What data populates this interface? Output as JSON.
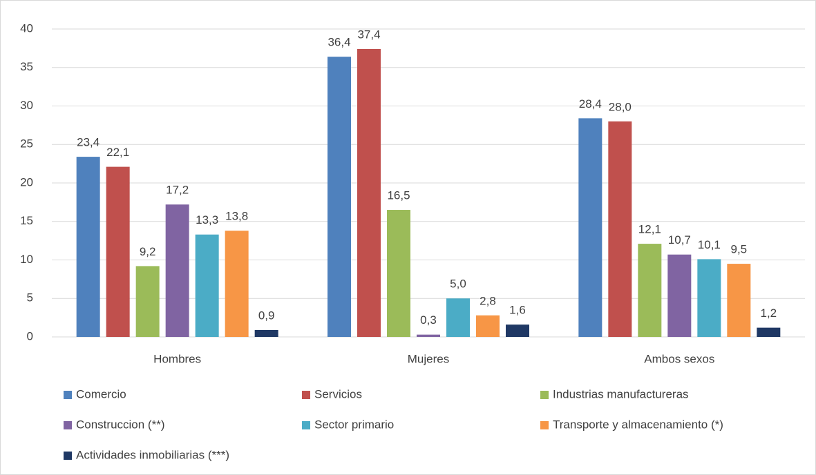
{
  "chart_data": {
    "type": "bar",
    "categories": [
      "Hombres",
      "Mujeres",
      "Ambos sexos"
    ],
    "series": [
      {
        "name": "Comercio",
        "color": "#4f81bd",
        "values": [
          23.4,
          36.4,
          28.4
        ],
        "value_labels": [
          "23,4",
          "36,4",
          "28,4"
        ]
      },
      {
        "name": "Servicios",
        "color": "#c0504d",
        "values": [
          22.1,
          37.4,
          28.0
        ],
        "value_labels": [
          "22,1",
          "37,4",
          "28,0"
        ]
      },
      {
        "name": "Industrias manufactureras",
        "color": "#9bbb59",
        "values": [
          9.2,
          16.5,
          12.1
        ],
        "value_labels": [
          "9,2",
          "16,5",
          "12,1"
        ]
      },
      {
        "name": "Construccion (**)",
        "color": "#8064a2",
        "values": [
          17.2,
          0.3,
          10.7
        ],
        "value_labels": [
          "17,2",
          "0,3",
          "10,7"
        ]
      },
      {
        "name": "Sector primario",
        "color": "#4bacc6",
        "values": [
          13.3,
          5.0,
          10.1
        ],
        "value_labels": [
          "13,3",
          "5,0",
          "10,1"
        ]
      },
      {
        "name": "Transporte y almacenamiento (*)",
        "color": "#f79646",
        "values": [
          13.8,
          2.8,
          9.5
        ],
        "value_labels": [
          "13,8",
          "2,8",
          "9,5"
        ]
      },
      {
        "name": "Actividades inmobiliarias (***)",
        "color": "#1f3864",
        "values": [
          0.9,
          1.6,
          1.2
        ],
        "value_labels": [
          "0,9",
          "1,6",
          "1,2"
        ]
      }
    ],
    "ylim": [
      0,
      40
    ],
    "yticks": [
      0,
      5,
      10,
      15,
      20,
      25,
      30,
      35,
      40
    ],
    "grid": true,
    "legend": "bottom"
  }
}
